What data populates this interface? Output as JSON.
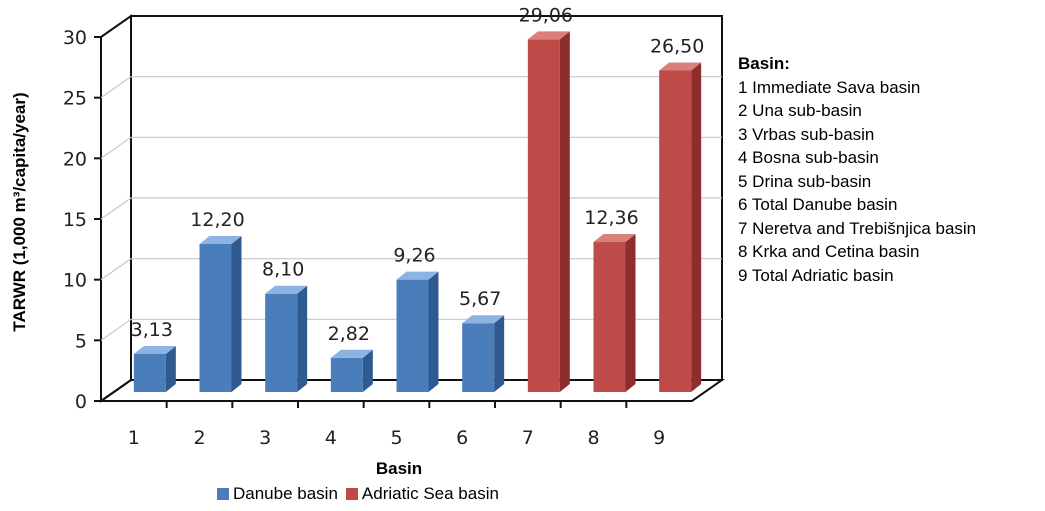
{
  "chart_data": {
    "type": "bar",
    "categories": [
      "1",
      "2",
      "3",
      "4",
      "5",
      "6",
      "7",
      "8",
      "9"
    ],
    "values": [
      3.13,
      12.2,
      8.1,
      2.82,
      9.26,
      5.67,
      29.06,
      12.36,
      26.5
    ],
    "value_labels": [
      "3,13",
      "12,20",
      "8,10",
      "2,82",
      "9,26",
      "5,67",
      "29,06",
      "12,36",
      "26,50"
    ],
    "bar_groups": [
      "Danube basin",
      "Danube basin",
      "Danube basin",
      "Danube basin",
      "Danube basin",
      "Danube basin",
      "Adriatic Sea basin",
      "Adriatic Sea basin",
      "Adriatic Sea basin"
    ],
    "xlabel": "Basin",
    "ylabel": "TARWR (1,000 m³/capita/year)",
    "ylim": [
      0,
      30
    ],
    "yticks": [
      "0",
      "5",
      "10",
      "15",
      "20",
      "25",
      "30"
    ],
    "grid": true,
    "legend_position": "bottom",
    "legend": [
      {
        "label": "Danube basin",
        "color": "#4a7ebb"
      },
      {
        "label": "Adriatic Sea basin",
        "color": "#be4b48"
      }
    ],
    "colors": {
      "Danube basin": "#4a7ebb",
      "Adriatic Sea basin": "#be4b48"
    }
  },
  "basin_key": {
    "title": "Basin:",
    "items": [
      "1 Immediate Sava basin",
      "2 Una sub-basin",
      "3 Vrbas sub-basin",
      "4 Bosna sub-basin",
      "5 Drina sub-basin",
      "6 Total Danube basin",
      "7 Neretva and Trebišnjica basin",
      "8 Krka and Cetina basin",
      "9 Total Adriatic basin"
    ]
  }
}
